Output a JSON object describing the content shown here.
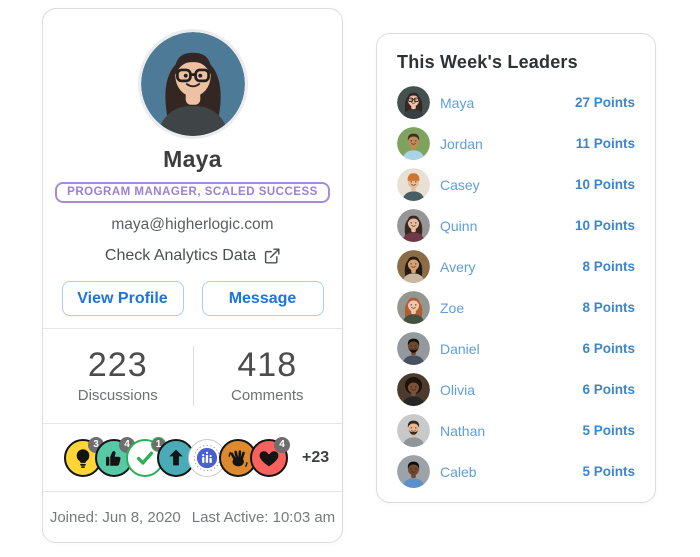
{
  "colors": {
    "button_blue": "#1b74e4",
    "button_border": "#abcdf4",
    "link_name_blue": "#5f9ed8",
    "points_blue": "#3c86cd",
    "role_purple": "#9b7fd4",
    "heading_dark": "#2f3235",
    "muted_gray": "#76797c",
    "card_border": "#dcdcdc"
  },
  "profile_card": {
    "name": "Maya",
    "role_badge": "PROGRAM MANAGER, SCALED SUCCESS",
    "email": "maya@higherlogic.com",
    "analytics_link_label": "Check Analytics Data",
    "analytics_link_icon": "external-link-icon",
    "buttons": {
      "view_profile": "View Profile",
      "message": "Message"
    },
    "stats": [
      {
        "value": "223",
        "label": "Discussions"
      },
      {
        "value": "418",
        "label": "Comments"
      }
    ],
    "badges": [
      {
        "icon": "lightbulb-icon",
        "bg": "#ffd537",
        "border": "#141414",
        "count": "3"
      },
      {
        "icon": "thumbs-up-icon",
        "bg": "#58c9a7",
        "border": "#141414",
        "count": "4"
      },
      {
        "icon": "check-icon",
        "bg": "#ffffff",
        "border": "#2daf5a",
        "count": "1"
      },
      {
        "icon": "arrow-up-icon",
        "bg": "#4aabb8",
        "border": "#141414",
        "count": ""
      },
      {
        "icon": "bar-chart-icon",
        "bg": "#ffffff",
        "border": "#c9c9c9",
        "count": "",
        "inner": "#4a5fd0"
      },
      {
        "icon": "wave-icon",
        "bg": "#dd8a2e",
        "border": "#141414",
        "count": ""
      },
      {
        "icon": "heart-icon",
        "bg": "#f9615f",
        "border": "#141414",
        "count": "4"
      }
    ],
    "badges_more": "+23",
    "footer": {
      "joined": "Joined: Jun 8, 2020",
      "last_active": "Last Active: 10:03 am"
    },
    "avatar": {
      "bg": "#4d7a96",
      "skin": "#eec1a3",
      "hair": "#342622",
      "shirt": "#3f4447",
      "hair_style": "long",
      "glasses": true
    }
  },
  "leaderboard": {
    "title": "This Week's Leaders",
    "rows": [
      {
        "name": "Maya",
        "points": "27 Points",
        "avatar": {
          "bg": "#44524f",
          "skin": "#eec1a3",
          "hair": "#342622",
          "shirt": "#3a3f42",
          "hair_style": "long",
          "glasses": true
        }
      },
      {
        "name": "Jordan",
        "points": "11 Points",
        "avatar": {
          "bg": "#7fa35e",
          "skin": "#c08a5a",
          "hair": "#3c2f23",
          "shirt": "#a9d4e3",
          "hair_style": "short"
        }
      },
      {
        "name": "Casey",
        "points": "10 Points",
        "avatar": {
          "bg": "#e9e0d4",
          "skin": "#e8bd9c",
          "hair": "#8a5a3a",
          "shirt": "#475f63",
          "hair_style": "beanie",
          "acc": "#d0752f"
        }
      },
      {
        "name": "Quinn",
        "points": "10 Points",
        "avatar": {
          "bg": "#969696",
          "skin": "#e7bb9d",
          "hair": "#362821",
          "shirt": "#6f3a45",
          "hair_style": "long"
        }
      },
      {
        "name": "Avery",
        "points": "8 Points",
        "avatar": {
          "bg": "#8a6c46",
          "skin": "#d8a172",
          "hair": "#221b16",
          "shirt": "#cbb7a0",
          "hair_style": "long"
        }
      },
      {
        "name": "Zoe",
        "points": "8 Points",
        "avatar": {
          "bg": "#939790",
          "skin": "#efc6a8",
          "hair": "#b05c35",
          "shirt": "#45503f",
          "hair_style": "long"
        }
      },
      {
        "name": "Daniel",
        "points": "6 Points",
        "avatar": {
          "bg": "#94999e",
          "skin": "#70492f",
          "hair": "#15100c",
          "shirt": "#47525e",
          "hair_style": "short",
          "beard": true
        }
      },
      {
        "name": "Olivia",
        "points": "6 Points",
        "avatar": {
          "bg": "#4c3b2d",
          "skin": "#7c5136",
          "hair": "#1c130e",
          "shirt": "#262626",
          "hair_style": "curly"
        }
      },
      {
        "name": "Nathan",
        "points": "5 Points",
        "avatar": {
          "bg": "#c7c9cb",
          "skin": "#e8b894",
          "hair": "#33281f",
          "shirt": "#90959a",
          "hair_style": "short",
          "beard": true
        }
      },
      {
        "name": "Caleb",
        "points": "5 Points",
        "avatar": {
          "bg": "#9ba2a8",
          "skin": "#6f4a30",
          "hair": "#120d09",
          "shirt": "#5c90cc",
          "hair_style": "short"
        }
      }
    ]
  }
}
